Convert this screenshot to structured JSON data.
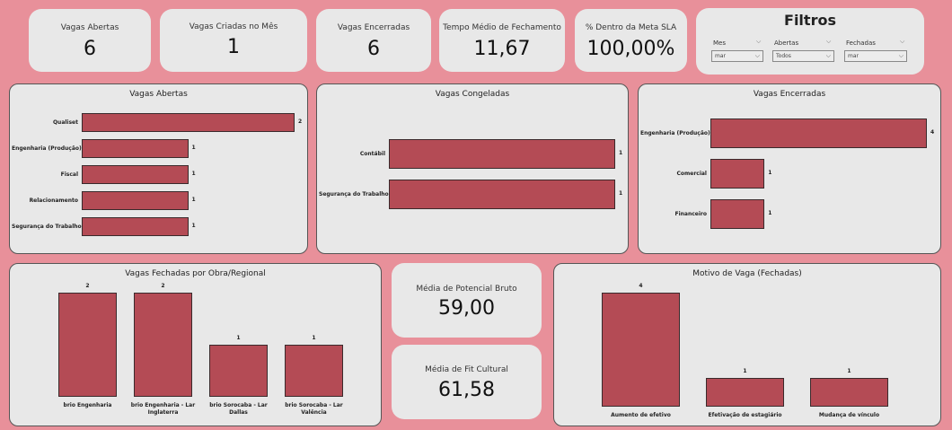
{
  "kpis": [
    {
      "label": "Vagas Abertas",
      "value": "6"
    },
    {
      "label": "Vagas Criadas no Mês",
      "value": "1"
    },
    {
      "label": "Vagas Encerradas",
      "value": "6"
    },
    {
      "label": "Tempo Médio de Fechamento",
      "value": "11,67"
    },
    {
      "label": "% Dentro da Meta SLA",
      "value": "100,00%"
    }
  ],
  "filters": {
    "title": "Filtros",
    "items": [
      {
        "label": "Mes",
        "value": "mar"
      },
      {
        "label": "Abertas",
        "value": "Todos"
      },
      {
        "label": "Fechadas",
        "value": "mar"
      }
    ]
  },
  "kpis2": [
    {
      "label": "Média de Potencial Bruto",
      "value": "59,00"
    },
    {
      "label": "Média de Fit Cultural",
      "value": "61,58"
    }
  ],
  "chart_data": [
    {
      "type": "bar",
      "orientation": "horizontal",
      "title": "Vagas Abertas",
      "categories": [
        "Qualiset",
        "Engenharia (Produção)",
        "Fiscal",
        "Relacionamento",
        "Segurança do Trabalho"
      ],
      "values": [
        2,
        1,
        1,
        1,
        1
      ]
    },
    {
      "type": "bar",
      "orientation": "horizontal",
      "title": "Vagas Congeladas",
      "categories": [
        "Contábil",
        "Segurança do Trabalho"
      ],
      "values": [
        1,
        1
      ]
    },
    {
      "type": "bar",
      "orientation": "horizontal",
      "title": "Vagas Encerradas",
      "categories": [
        "Engenharia (Produção)",
        "Comercial",
        "Financeiro"
      ],
      "values": [
        4,
        1,
        1
      ]
    },
    {
      "type": "bar",
      "orientation": "vertical",
      "title": "Vagas Fechadas por Obra/Regional",
      "categories": [
        "brio Engenharia",
        "brio Engenharia - Lar Inglaterra",
        "brio Sorocaba - Lar Dallas",
        "brio Sorocaba - Lar Valência"
      ],
      "values": [
        2,
        2,
        1,
        1
      ]
    },
    {
      "type": "bar",
      "orientation": "vertical",
      "title": "Motivo de Vaga (Fechadas)",
      "categories": [
        "Aumento de efetivo",
        "Efetivação de estagiário",
        "Mudança de vínculo"
      ],
      "values": [
        4,
        1,
        1
      ]
    }
  ],
  "colors": {
    "background": "#e8909a",
    "card": "#e8e8e8",
    "bar": "#b44b55"
  }
}
